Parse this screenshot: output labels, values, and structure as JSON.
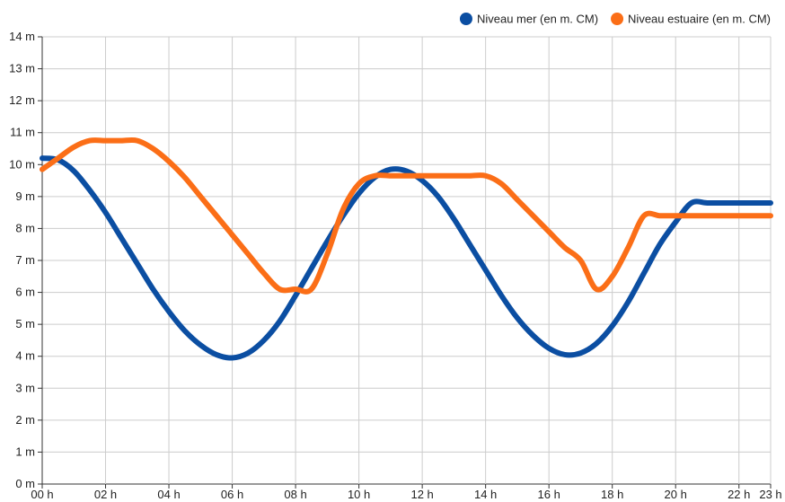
{
  "chart_data": {
    "type": "line",
    "x": [
      "00 h",
      "01 h",
      "02 h",
      "03 h",
      "04 h",
      "05 h",
      "06 h",
      "07 h",
      "08 h",
      "09 h",
      "10 h",
      "11 h",
      "12 h",
      "13 h",
      "14 h",
      "15 h",
      "16 h",
      "17 h",
      "18 h",
      "19 h",
      "20 h",
      "21 h",
      "22 h",
      "23 h"
    ],
    "x_tick_labels": [
      "00 h",
      "02 h",
      "04 h",
      "06 h",
      "08 h",
      "10 h",
      "12 h",
      "14 h",
      "16 h",
      "18 h",
      "20 h",
      "22 h",
      "23 h"
    ],
    "y_tick_labels": [
      "0 m",
      "1 m",
      "2 m",
      "3 m",
      "4 m",
      "5 m",
      "6 m",
      "7 m",
      "8 m",
      "9 m",
      "10 m",
      "11 m",
      "12 m",
      "13 m",
      "14 m"
    ],
    "ylim": [
      0,
      14
    ],
    "grid": true,
    "legend_position": "top-right",
    "series": [
      {
        "name": "Niveau mer (en m. CM)",
        "color": "#0b4ea2",
        "x": [
          0,
          0.5,
          1,
          1.5,
          2,
          2.5,
          3,
          3.5,
          4,
          4.5,
          5,
          5.5,
          6,
          6.5,
          7,
          7.5,
          8,
          8.5,
          9,
          9.5,
          10,
          10.5,
          11,
          11.5,
          12,
          12.5,
          13,
          13.5,
          14,
          14.5,
          15,
          15.5,
          16,
          16.5,
          17,
          17.5,
          18,
          18.5,
          19,
          19.5,
          20,
          20.5,
          21,
          21.5,
          22,
          22.5,
          23
        ],
        "y": [
          10.2,
          10.15,
          9.8,
          9.2,
          8.5,
          7.7,
          6.9,
          6.1,
          5.4,
          4.8,
          4.35,
          4.05,
          3.95,
          4.1,
          4.5,
          5.1,
          5.9,
          6.75,
          7.6,
          8.4,
          9.1,
          9.6,
          9.85,
          9.8,
          9.5,
          9.0,
          8.3,
          7.5,
          6.7,
          5.9,
          5.2,
          4.65,
          4.25,
          4.05,
          4.1,
          4.4,
          4.95,
          5.7,
          6.6,
          7.5,
          8.2,
          8.8,
          8.8,
          8.8,
          8.8,
          8.8,
          8.8
        ]
      },
      {
        "name": "Niveau estuaire (en m. CM)",
        "color": "#fb6e17",
        "x": [
          0,
          0.5,
          1,
          1.5,
          2,
          2.5,
          3,
          3.5,
          4,
          4.5,
          5,
          5.5,
          6,
          6.5,
          7,
          7.5,
          8,
          8.5,
          9,
          9.5,
          10,
          10.5,
          11,
          11.5,
          12,
          12.5,
          13,
          13.5,
          14,
          14.5,
          15,
          15.5,
          16,
          16.5,
          17,
          17.5,
          18,
          18.5,
          19,
          19.5,
          20,
          20.5,
          21,
          21.5,
          22,
          22.5,
          23
        ],
        "y": [
          9.85,
          10.2,
          10.55,
          10.75,
          10.75,
          10.75,
          10.75,
          10.5,
          10.1,
          9.6,
          9.0,
          8.4,
          7.8,
          7.2,
          6.6,
          6.1,
          6.1,
          6.1,
          7.2,
          8.6,
          9.4,
          9.65,
          9.65,
          9.65,
          9.65,
          9.65,
          9.65,
          9.65,
          9.65,
          9.4,
          8.9,
          8.4,
          7.9,
          7.4,
          7.0,
          6.1,
          6.5,
          7.4,
          8.4,
          8.4,
          8.4,
          8.4,
          8.4,
          8.4,
          8.4,
          8.4,
          8.4
        ]
      }
    ]
  }
}
